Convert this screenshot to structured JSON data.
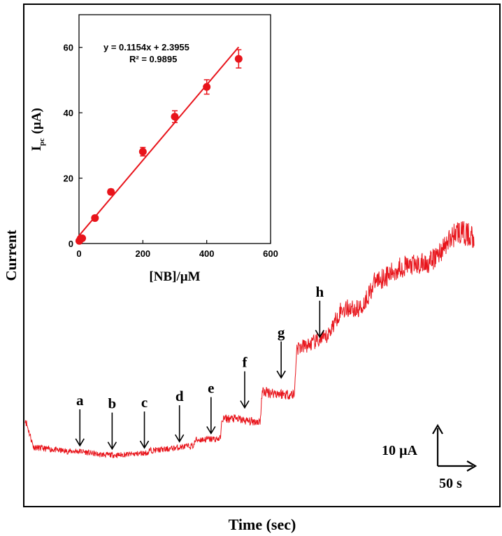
{
  "chart_data": [
    {
      "type": "line",
      "title": "",
      "xlabel": "Time (sec)",
      "ylabel": "Current",
      "color": "#e8141b",
      "grid": false,
      "series": [
        {
          "x": [
            0,
            12,
            60,
            80,
            105,
            130,
            155,
            176,
            177,
            200,
            220,
            240,
            243,
            265,
            278,
            281,
            300,
            320,
            335,
            338,
            355,
            370,
            384,
            387,
            403,
            420,
            430,
            450,
            465,
            470,
            480,
            500,
            520,
            535,
            560,
            580,
            600,
            615,
            640
          ],
          "y": [
            20.0,
            9.5,
            8.0,
            8.0,
            6.8,
            6.6,
            7.0,
            7.5,
            8.3,
            8.7,
            9.5,
            10.0,
            12.2,
            12.5,
            12.6,
            20.0,
            20.0,
            19.0,
            19.0,
            30.0,
            29.5,
            29.0,
            29.0,
            46.0,
            47.0,
            49.0,
            50.0,
            60.0,
            61.0,
            60.0,
            61.0,
            71.0,
            73.0,
            76.0,
            76.5,
            78.0,
            84.0,
            89.0,
            87.0
          ]
        }
      ],
      "annotations": [
        {
          "label": "a",
          "x": 78,
          "y": 8.0
        },
        {
          "label": "b",
          "x": 124,
          "y": 6.8
        },
        {
          "label": "c",
          "x": 170,
          "y": 7.2
        },
        {
          "label": "d",
          "x": 220,
          "y": 9.5
        },
        {
          "label": "e",
          "x": 265,
          "y": 12.5
        },
        {
          "label": "f",
          "x": 313,
          "y": 22.0
        },
        {
          "label": "g",
          "x": 365,
          "y": 33.0
        },
        {
          "label": "h",
          "x": 420,
          "y": 48.0
        }
      ],
      "scale_bar": {
        "current_label": "10 µA",
        "time_label": "50 s"
      }
    },
    {
      "type": "scatter",
      "title": "",
      "xlabel": "[NB]/µM",
      "ylabel_main": "I",
      "ylabel_sub": "pc",
      "ylabel_unit": "(µA)",
      "xlim": [
        0,
        600
      ],
      "ylim": [
        0,
        70
      ],
      "xticks": [
        0,
        200,
        400,
        600
      ],
      "yticks": [
        0,
        20,
        40,
        60
      ],
      "color": "#e8141b",
      "series": [
        {
          "x": [
            1,
            5,
            10,
            50,
            100,
            200,
            300,
            400,
            500
          ],
          "y": [
            0.8,
            1.5,
            1.6,
            7.8,
            15.8,
            28.1,
            38.8,
            47.9,
            56.5
          ],
          "err": [
            0.4,
            0.5,
            0.5,
            0.6,
            0.8,
            1.3,
            1.8,
            2.2,
            2.8
          ]
        }
      ],
      "fit": {
        "slope": 0.1154,
        "intercept": 2.3955,
        "r2": 0.9895
      },
      "equation": "y = 0.1154x  + 2.3955",
      "r2_label": "R² = 0.9895"
    }
  ]
}
